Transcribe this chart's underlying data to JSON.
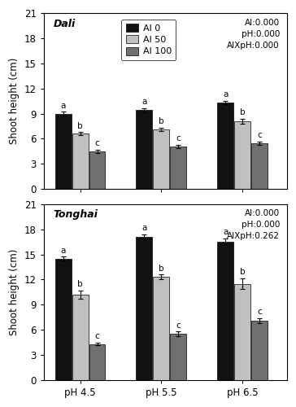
{
  "dali": {
    "title": "Dali",
    "ylabel": "Shoot height (cm)",
    "ylim": [
      0,
      21
    ],
    "yticks": [
      0,
      3,
      6,
      9,
      12,
      15,
      18,
      21
    ],
    "groups": [
      "pH 4.5",
      "pH 5.5",
      "pH 6.5"
    ],
    "values": [
      [
        9.0,
        9.4,
        10.3
      ],
      [
        6.6,
        7.1,
        8.1
      ],
      [
        4.5,
        5.1,
        5.5
      ]
    ],
    "errors": [
      [
        0.22,
        0.28,
        0.22
      ],
      [
        0.2,
        0.22,
        0.28
      ],
      [
        0.18,
        0.18,
        0.2
      ]
    ],
    "letters": [
      [
        "a",
        "a",
        "a"
      ],
      [
        "b",
        "b",
        "b"
      ],
      [
        "c",
        "c",
        "c"
      ]
    ],
    "stats_text": "Al:0.000\npH:0.000\nAlXpH:0.000",
    "legend_labels": [
      "Al 0",
      "Al 50",
      "Al 100"
    ],
    "bar_colors": [
      "#111111",
      "#c0c0c0",
      "#707070"
    ]
  },
  "tonghai": {
    "title": "Tonghai",
    "ylabel": "Shoot height (cm)",
    "ylim": [
      0,
      21
    ],
    "yticks": [
      0,
      3,
      6,
      9,
      12,
      15,
      18,
      21
    ],
    "groups": [
      "pH 4.5",
      "pH 5.5",
      "pH 6.5"
    ],
    "values": [
      [
        14.5,
        17.1,
        16.5
      ],
      [
        10.2,
        12.3,
        11.5
      ],
      [
        4.3,
        5.5,
        7.1
      ]
    ],
    "errors": [
      [
        0.25,
        0.28,
        0.4
      ],
      [
        0.5,
        0.28,
        0.65
      ],
      [
        0.18,
        0.3,
        0.28
      ]
    ],
    "letters": [
      [
        "a",
        "a",
        "a"
      ],
      [
        "b",
        "b",
        "b"
      ],
      [
        "c",
        "c",
        "c"
      ]
    ],
    "stats_text": "Al:0.000\npH:0.000\nAlXpH:0.262",
    "bar_colors": [
      "#111111",
      "#c0c0c0",
      "#707070"
    ]
  },
  "bar_width": 0.2,
  "group_positions": [
    1.0,
    2.0,
    3.0
  ],
  "offsets": [
    -0.21,
    0.0,
    0.21
  ],
  "fig_width": 3.64,
  "fig_height": 5.0,
  "dpi": 100
}
